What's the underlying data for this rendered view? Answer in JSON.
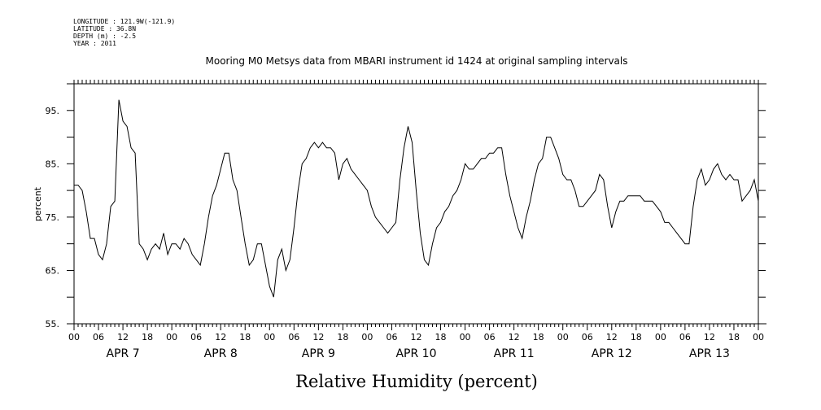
{
  "header": {
    "lines": [
      "LONGITUDE : 121.9W(-121.9)",
      "LATITUDE : 36.8N",
      "DEPTH (m) : -2.5",
      "YEAR : 2011"
    ]
  },
  "chart_data": {
    "type": "line",
    "title": "Mooring M0 Metsys data from MBARI instrument id 1424 at original sampling intervals",
    "xlabel": "Relative Humidity (percent)",
    "ylabel": "percent",
    "ylim": [
      55,
      100
    ],
    "xlim_hours": [
      0,
      168
    ],
    "y_ticks": [
      "55.",
      "65.",
      "75.",
      "85.",
      "95."
    ],
    "y_tick_values": [
      55,
      65,
      75,
      85,
      95
    ],
    "x_hour_labels": [
      "00",
      "06",
      "12",
      "18",
      "00",
      "06",
      "12",
      "18",
      "00",
      "06",
      "12",
      "18",
      "00",
      "06",
      "12",
      "18",
      "00",
      "06",
      "12",
      "18",
      "00",
      "06",
      "12",
      "18",
      "00",
      "06",
      "12",
      "18",
      "00"
    ],
    "day_labels": [
      "APR  7",
      "APR  8",
      "APR  9",
      "APR 10",
      "APR 11",
      "APR 12",
      "APR 13"
    ],
    "series": [
      {
        "color": "#000000",
        "x": [
          0,
          1,
          2,
          3,
          4,
          5,
          6,
          7,
          8,
          9,
          10,
          11,
          12,
          13,
          14,
          15,
          16,
          17,
          18,
          19,
          20,
          21,
          22,
          23,
          24,
          25,
          26,
          27,
          28,
          29,
          30,
          31,
          32,
          33,
          34,
          35,
          36,
          37,
          38,
          39,
          40,
          41,
          42,
          43,
          44,
          45,
          46,
          47,
          48,
          49,
          50,
          51,
          52,
          53,
          54,
          55,
          56,
          57,
          58,
          59,
          60,
          61,
          62,
          63,
          64,
          65,
          66,
          67,
          68,
          69,
          70,
          71,
          72,
          73,
          74,
          75,
          76,
          77,
          78,
          79,
          80,
          81,
          82,
          83,
          84,
          85,
          86,
          87,
          88,
          89,
          90,
          91,
          92,
          93,
          94,
          95,
          96,
          97,
          98,
          99,
          100,
          101,
          102,
          103,
          104,
          105,
          106,
          107,
          108,
          109,
          110,
          111,
          112,
          113,
          114,
          115,
          116,
          117,
          118,
          119,
          120,
          121,
          122,
          123,
          124,
          125,
          126,
          127,
          128,
          129,
          130,
          131,
          132,
          133,
          134,
          135,
          136,
          137,
          138,
          139,
          140,
          141,
          142,
          143,
          144,
          145,
          146,
          147,
          148,
          149,
          150,
          151,
          152,
          153,
          154,
          155,
          156,
          157,
          158,
          159,
          160,
          161,
          162,
          163,
          164,
          165,
          166,
          167,
          168
        ],
        "y": [
          81,
          81,
          80,
          76,
          71,
          71,
          68,
          67,
          70,
          77,
          78,
          97,
          93,
          92,
          88,
          87,
          70,
          69,
          67,
          69,
          70,
          69,
          72,
          68,
          70,
          70,
          69,
          71,
          70,
          68,
          67,
          66,
          70,
          75,
          79,
          81,
          84,
          87,
          87,
          82,
          80,
          75,
          70,
          66,
          67,
          70,
          70,
          66,
          62,
          60,
          67,
          69,
          65,
          67,
          73,
          80,
          85,
          86,
          88,
          89,
          88,
          89,
          88,
          88,
          87,
          82,
          85,
          86,
          84,
          83,
          82,
          81,
          80,
          77,
          75,
          74,
          73,
          72,
          73,
          74,
          82,
          88,
          92,
          89,
          80,
          72,
          67,
          66,
          70,
          73,
          74,
          76,
          77,
          79,
          80,
          82,
          85,
          84,
          84,
          85,
          86,
          86,
          87,
          87,
          88,
          88,
          83,
          79,
          76,
          73,
          71,
          75,
          78,
          82,
          85,
          86,
          90,
          90,
          88,
          86,
          83,
          82,
          82,
          80,
          77,
          77,
          78,
          79,
          80,
          83,
          82,
          77,
          73,
          76,
          78,
          78,
          79,
          79,
          79,
          79,
          78,
          78,
          78,
          77,
          76,
          74,
          74,
          73,
          72,
          71,
          70,
          70,
          77,
          82,
          84,
          81,
          82,
          84,
          85,
          83,
          82,
          83,
          82,
          82,
          78,
          79,
          80,
          82,
          78
        ]
      }
    ],
    "grid": false
  }
}
